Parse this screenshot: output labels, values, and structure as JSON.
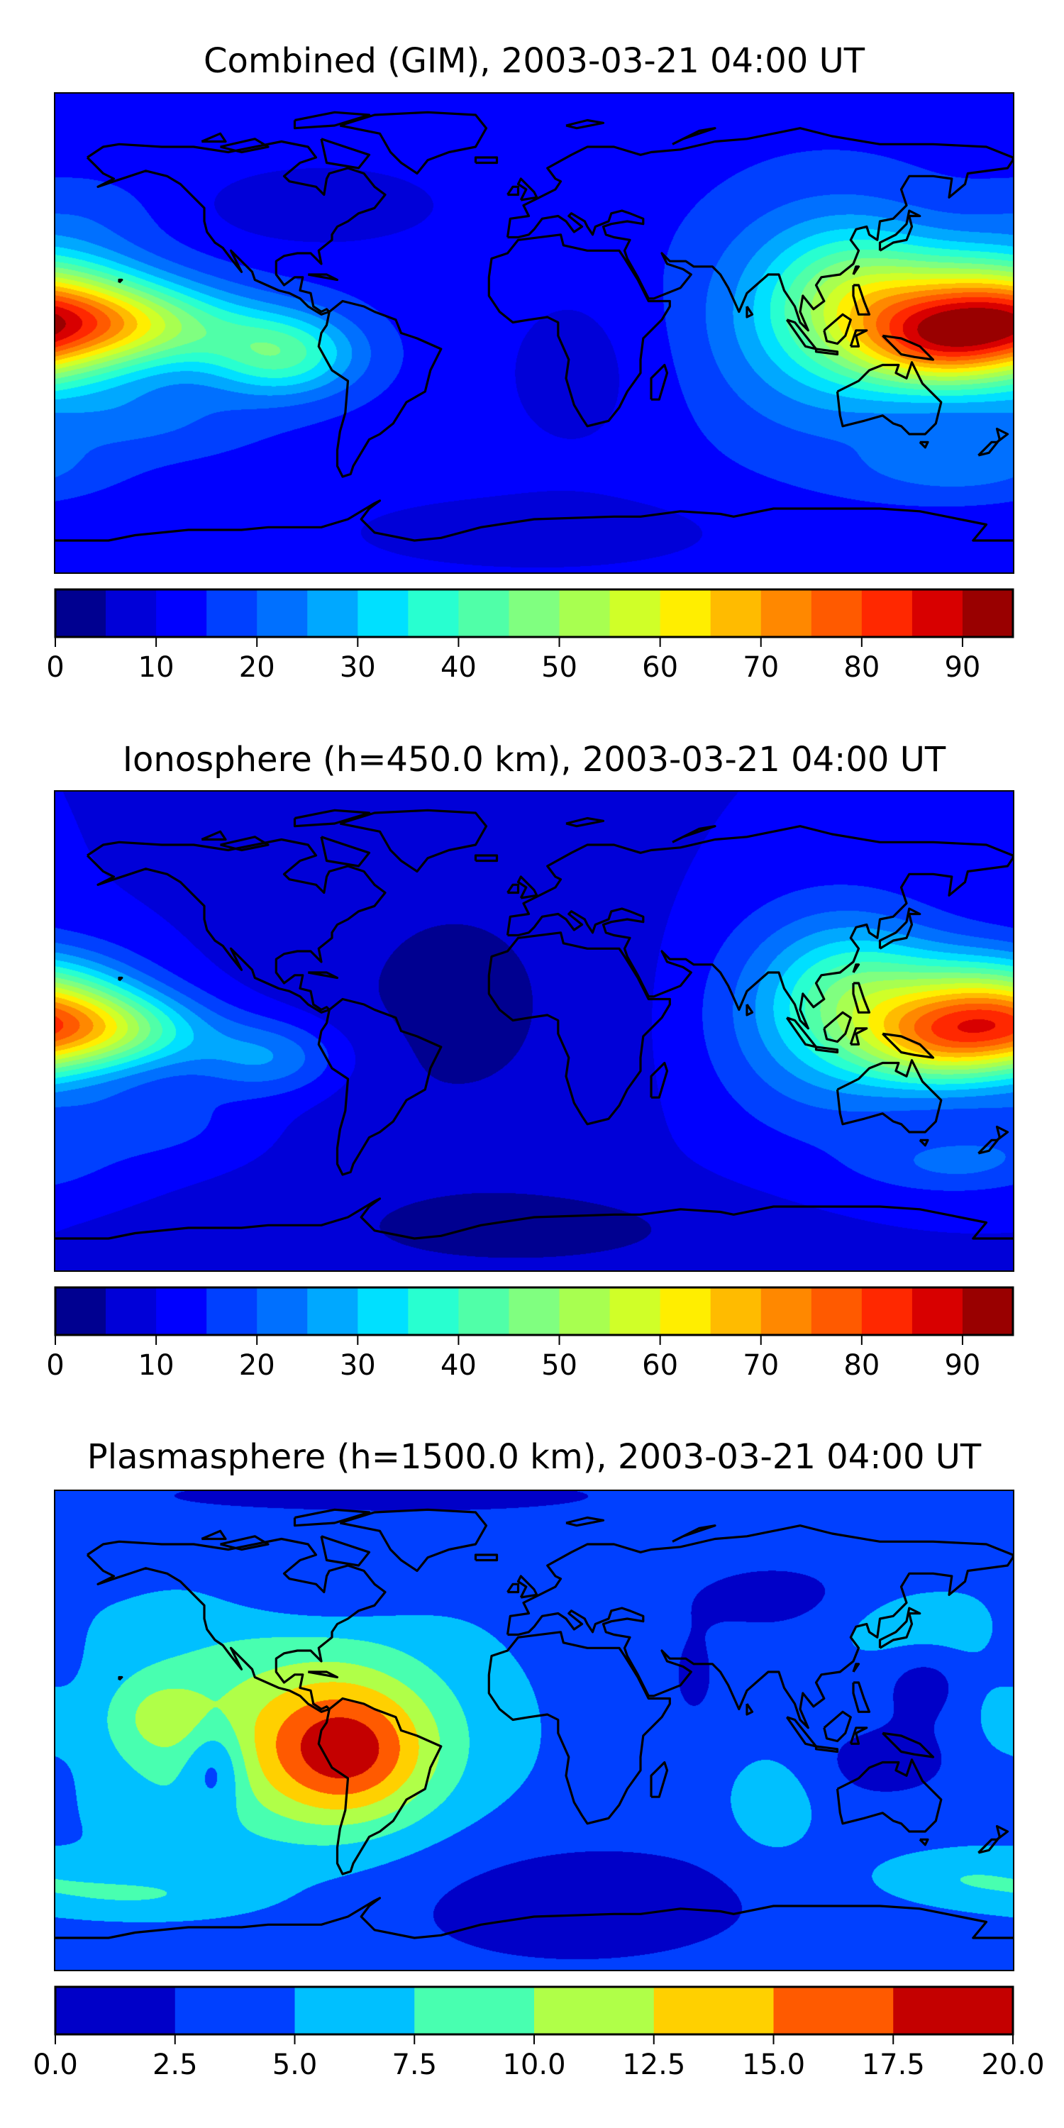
{
  "chart_data": [
    {
      "type": "heatmap",
      "title": "Combined (GIM), 2003-03-21 04:00 UT",
      "projection": "plate-carree",
      "xlim": [
        -180,
        180
      ],
      "ylim": [
        -90,
        90
      ],
      "levels": [
        0,
        5,
        10,
        15,
        20,
        25,
        30,
        35,
        40,
        45,
        50,
        55,
        60,
        65,
        70,
        75,
        80,
        85,
        90,
        95
      ],
      "colors": [
        "#000090",
        "#0000d8",
        "#0000ff",
        "#0040ff",
        "#0070ff",
        "#00a8ff",
        "#00e0ff",
        "#28ffd0",
        "#50ffa8",
        "#80ff80",
        "#a8ff50",
        "#d0ff28",
        "#ffee00",
        "#ffbb00",
        "#ff8800",
        "#ff5a00",
        "#ff2800",
        "#d80000",
        "#990000"
      ],
      "colorbar_ticks": [
        "0",
        "10",
        "20",
        "30",
        "40",
        "50",
        "60",
        "70",
        "80",
        "90"
      ],
      "colorbar_tick_values": [
        0,
        10,
        20,
        30,
        40,
        50,
        60,
        70,
        80,
        90
      ],
      "field": {
        "base": 13,
        "blobs": [
          {
            "lon": 172,
            "lat": 5,
            "amp": 62,
            "slon": 28,
            "slat": 16
          },
          {
            "lon": 150,
            "lat": -5,
            "amp": 22,
            "slon": 20,
            "slat": 11
          },
          {
            "lon": 122,
            "lat": 12,
            "amp": 22,
            "slon": 22,
            "slat": 18
          },
          {
            "lon": -145,
            "lat": 3,
            "amp": 28,
            "slon": 28,
            "slat": 11
          },
          {
            "lon": -95,
            "lat": -8,
            "amp": 28,
            "slon": 20,
            "slat": 11
          },
          {
            "lon": 110,
            "lat": 5,
            "amp": 18,
            "slon": 32,
            "slat": 30
          },
          {
            "lon": -80,
            "lat": 48,
            "amp": -8,
            "slon": 30,
            "slat": 10
          },
          {
            "lon": 15,
            "lat": -15,
            "amp": -5,
            "slon": 22,
            "slat": 25
          },
          {
            "lon": 0,
            "lat": -75,
            "amp": -7,
            "slon": 50,
            "slat": 10
          },
          {
            "lon": 160,
            "lat": -50,
            "amp": 10,
            "slon": 25,
            "slat": 8
          },
          {
            "lon": -150,
            "lat": -32,
            "amp": 8,
            "slon": 30,
            "slat": 10
          },
          {
            "lon": -170,
            "lat": 45,
            "amp": 4,
            "slon": 20,
            "slat": 10
          }
        ]
      }
    },
    {
      "type": "heatmap",
      "title": "Ionosphere  (h=450.0 km), 2003-03-21 04:00 UT",
      "projection": "plate-carree",
      "xlim": [
        -180,
        180
      ],
      "ylim": [
        -90,
        90
      ],
      "levels": [
        0,
        5,
        10,
        15,
        20,
        25,
        30,
        35,
        40,
        45,
        50,
        55,
        60,
        65,
        70,
        75,
        80,
        85,
        90,
        95
      ],
      "colors": [
        "#000090",
        "#0000d8",
        "#0000ff",
        "#0040ff",
        "#0070ff",
        "#00a8ff",
        "#00e0ff",
        "#28ffd0",
        "#50ffa8",
        "#80ff80",
        "#a8ff50",
        "#d0ff28",
        "#ffee00",
        "#ffbb00",
        "#ff8800",
        "#ff5a00",
        "#ff2800",
        "#d80000",
        "#990000"
      ],
      "colorbar_ticks": [
        "0",
        "10",
        "20",
        "30",
        "40",
        "50",
        "60",
        "70",
        "80",
        "90"
      ],
      "colorbar_tick_values": [
        0,
        10,
        20,
        30,
        40,
        50,
        60,
        70,
        80,
        90
      ],
      "field": {
        "base": 10,
        "blobs": [
          {
            "lon": 172,
            "lat": 5,
            "amp": 54,
            "slon": 26,
            "slat": 15
          },
          {
            "lon": 150,
            "lat": -5,
            "amp": 20,
            "slon": 20,
            "slat": 11
          },
          {
            "lon": 122,
            "lat": 12,
            "amp": 20,
            "slon": 22,
            "slat": 18
          },
          {
            "lon": -155,
            "lat": 0,
            "amp": 24,
            "slon": 25,
            "slat": 10
          },
          {
            "lon": -100,
            "lat": -10,
            "amp": 16,
            "slon": 20,
            "slat": 10
          },
          {
            "lon": 110,
            "lat": 5,
            "amp": 16,
            "slon": 32,
            "slat": 30
          },
          {
            "lon": -30,
            "lat": 10,
            "amp": -6,
            "slon": 50,
            "slat": 50
          },
          {
            "lon": 0,
            "lat": -75,
            "amp": -6,
            "slon": 60,
            "slat": 12
          },
          {
            "lon": 160,
            "lat": -50,
            "amp": 10,
            "slon": 25,
            "slat": 8
          },
          {
            "lon": -150,
            "lat": -35,
            "amp": 8,
            "slon": 30,
            "slat": 10
          }
        ]
      }
    },
    {
      "type": "heatmap",
      "title": "Plasmasphere (h=1500.0 km), 2003-03-21 04:00 UT",
      "projection": "plate-carree",
      "xlim": [
        -180,
        180
      ],
      "ylim": [
        -90,
        90
      ],
      "levels": [
        0,
        2.5,
        5,
        7.5,
        10,
        12.5,
        15,
        17.5,
        20
      ],
      "colors": [
        "#0000c8",
        "#0040ff",
        "#00c0ff",
        "#48ffb0",
        "#b0ff48",
        "#ffd000",
        "#ff5a00",
        "#c40000"
      ],
      "colorbar_ticks": [
        "0.0",
        "2.5",
        "5.0",
        "7.5",
        "10.0",
        "12.5",
        "15.0",
        "17.5",
        "20.0"
      ],
      "colorbar_tick_values": [
        0,
        2.5,
        5,
        7.5,
        10,
        12.5,
        15,
        17.5,
        20
      ],
      "field": {
        "base": 4,
        "blobs": [
          {
            "lon": -70,
            "lat": -8,
            "amp": 10,
            "slon": 22,
            "slat": 18
          },
          {
            "lon": -95,
            "lat": 0,
            "amp": 6.5,
            "slon": 50,
            "slat": 32
          },
          {
            "lon": -140,
            "lat": 5,
            "amp": 3.5,
            "slon": 12,
            "slat": 10
          },
          {
            "lon": -120,
            "lat": -14,
            "amp": -5,
            "slon": 8,
            "slat": 12
          },
          {
            "lon": -80,
            "lat": 50,
            "amp": -2.5,
            "slon": 25,
            "slat": 8
          },
          {
            "lon": 90,
            "lat": 50,
            "amp": -2.5,
            "slon": 25,
            "slat": 10
          },
          {
            "lon": 147,
            "lat": 20,
            "amp": -3,
            "slon": 12,
            "slat": 12
          },
          {
            "lon": 60,
            "lat": 20,
            "amp": -2,
            "slon": 8,
            "slat": 15
          },
          {
            "lon": 135,
            "lat": -12,
            "amp": -2.5,
            "slon": 25,
            "slat": 12
          },
          {
            "lon": 15,
            "lat": -65,
            "amp": -3,
            "slon": 55,
            "slat": 18
          },
          {
            "lon": -180,
            "lat": 15,
            "amp": -2.2,
            "slon": 8,
            "slat": 25
          },
          {
            "lon": -60,
            "lat": 88,
            "amp": -2.5,
            "slon": 80,
            "slat": 6
          },
          {
            "lon": 90,
            "lat": -28,
            "amp": 3,
            "slon": 12,
            "slat": 14
          },
          {
            "lon": 145,
            "lat": 38,
            "amp": 3,
            "slon": 22,
            "slat": 10
          },
          {
            "lon": 160,
            "lat": -55,
            "amp": 3,
            "slon": 25,
            "slat": 7
          },
          {
            "lon": -150,
            "lat": -62,
            "amp": 3,
            "slon": 30,
            "slat": 6
          },
          {
            "lon": 178,
            "lat": 5,
            "amp": 3,
            "slon": 8,
            "slat": 12
          }
        ]
      }
    }
  ]
}
